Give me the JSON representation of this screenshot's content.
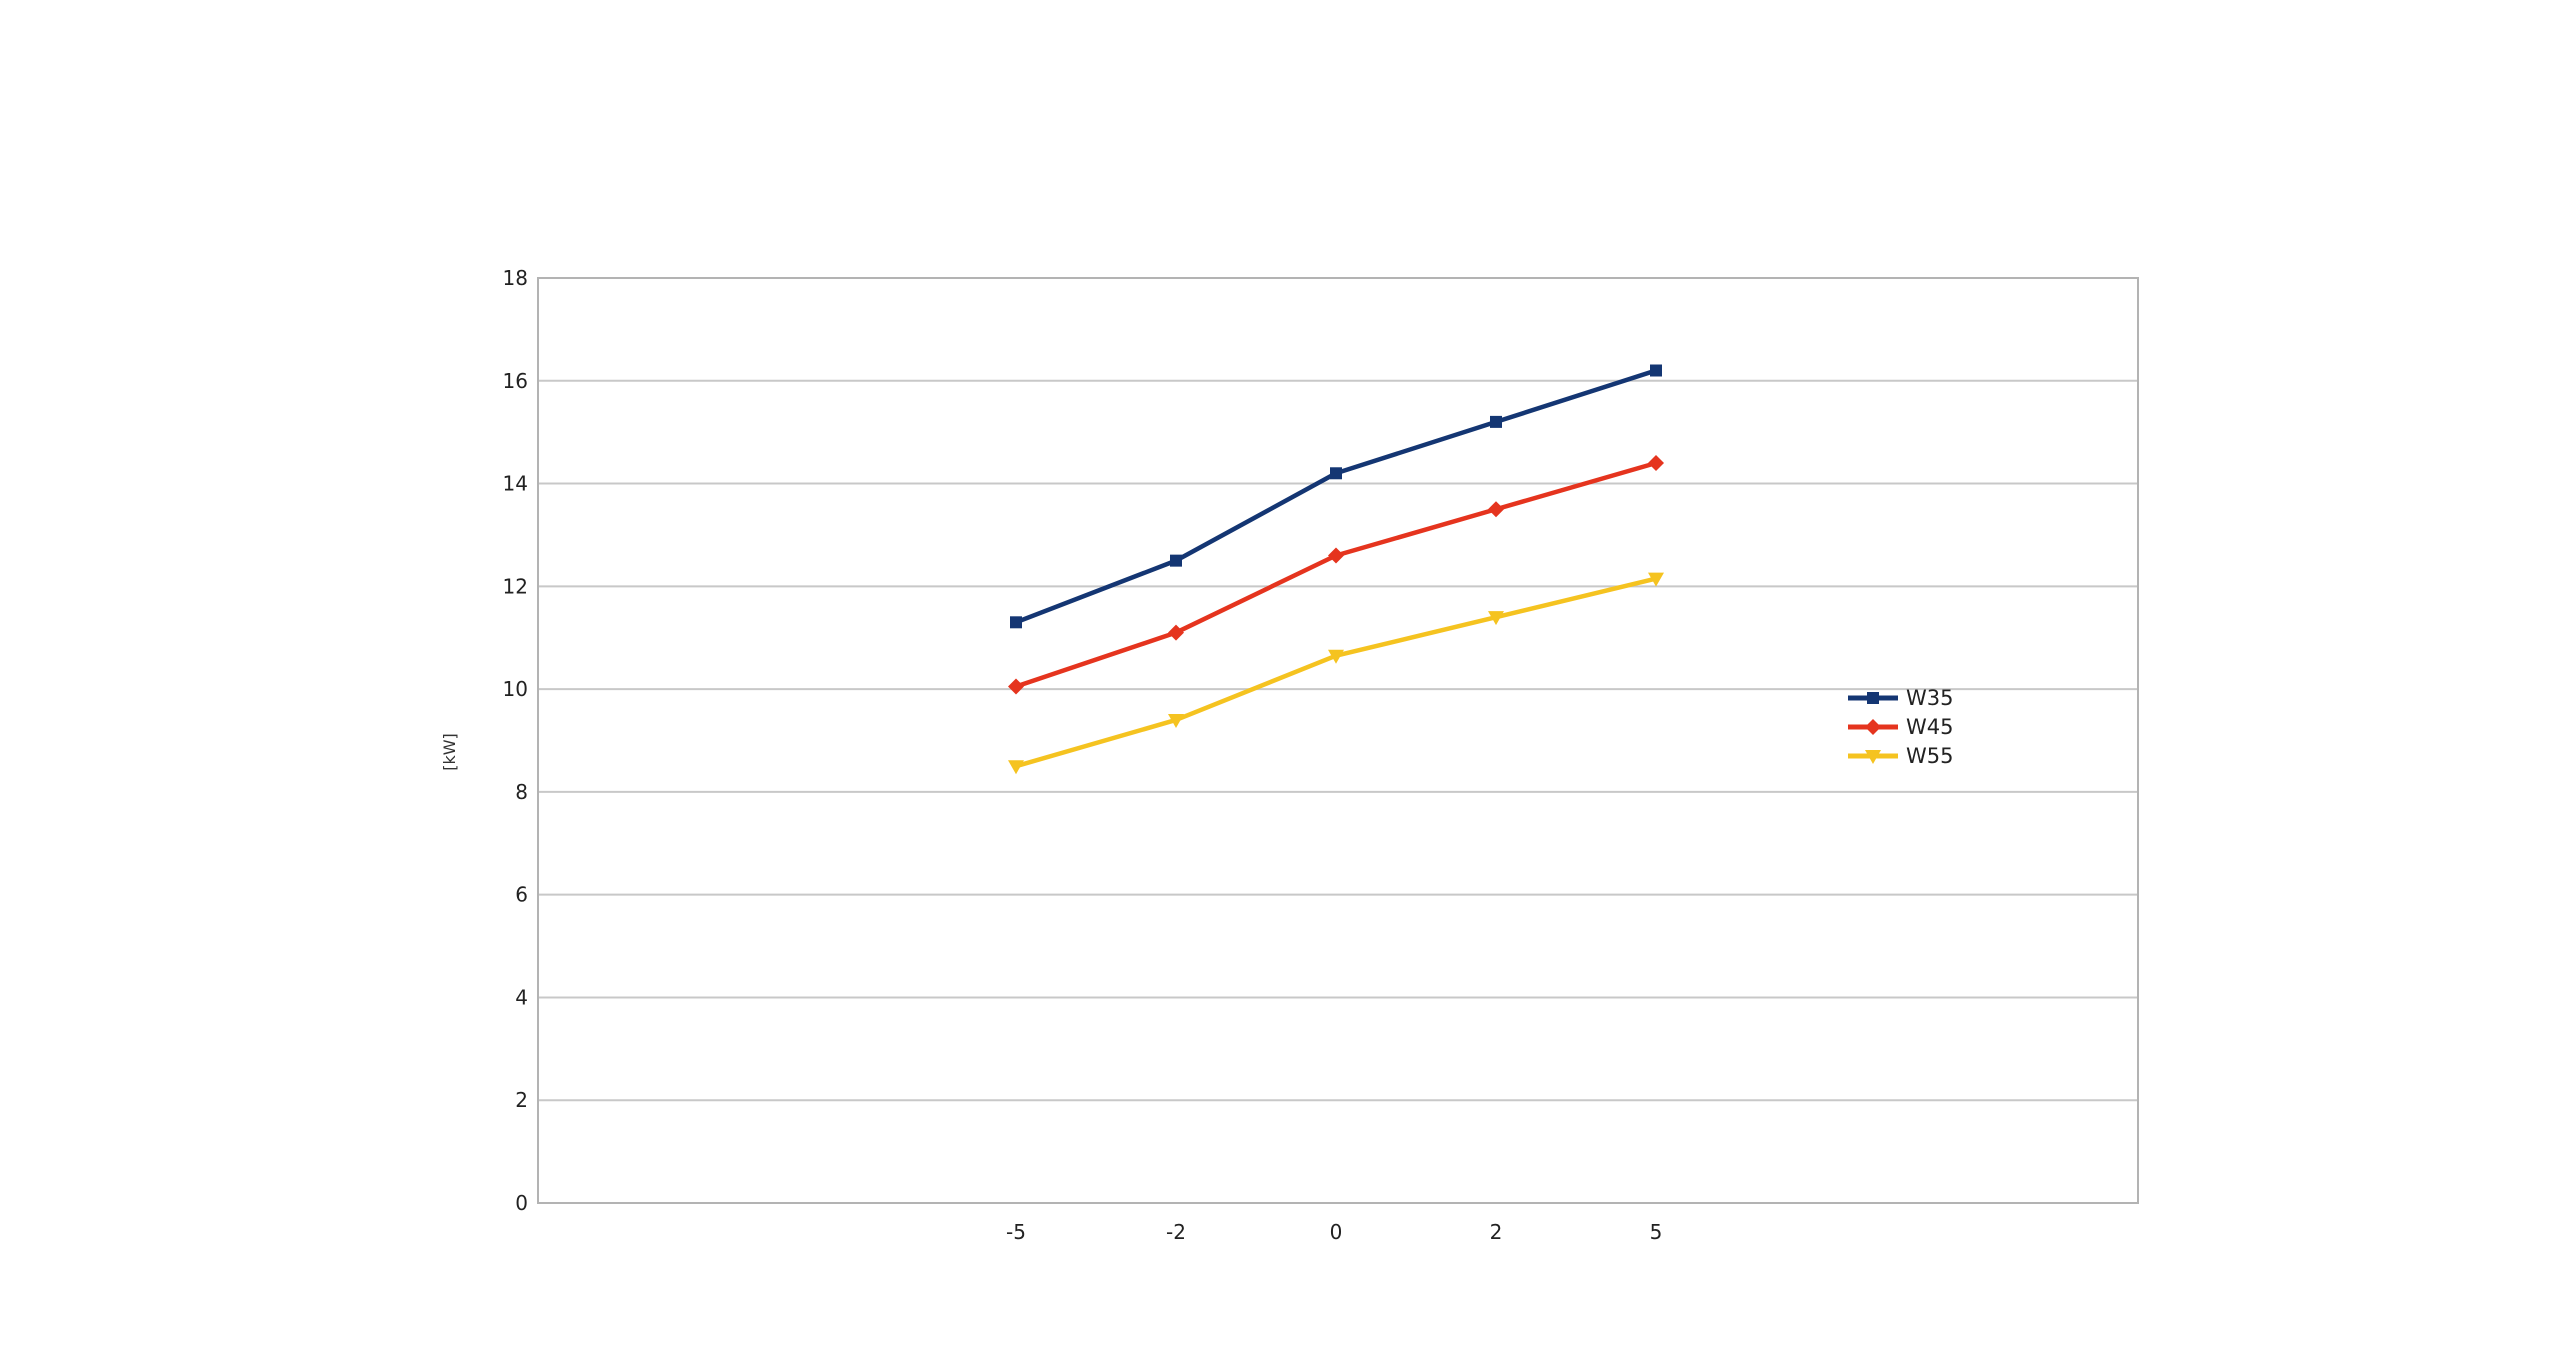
{
  "chart_data": {
    "type": "line",
    "title": "",
    "xlabel": "",
    "ylabel": "[kW]",
    "categories": [
      "-5",
      "-2",
      "0",
      "2",
      "5"
    ],
    "ylim": [
      0,
      18
    ],
    "y_ticks": [
      "0",
      "2",
      "4",
      "6",
      "8",
      "10",
      "12",
      "14",
      "16",
      "18"
    ],
    "grid": true,
    "legend_position": "right",
    "series": [
      {
        "name": "W35",
        "color": "#143673",
        "marker": "square",
        "values": [
          11.3,
          12.5,
          14.2,
          15.2,
          16.2
        ]
      },
      {
        "name": "W45",
        "color": "#e5341e",
        "marker": "diamond",
        "values": [
          10.05,
          11.1,
          12.6,
          13.5,
          14.4
        ]
      },
      {
        "name": "W55",
        "color": "#f5c320",
        "marker": "triangle-down",
        "values": [
          8.5,
          9.4,
          10.65,
          11.4,
          12.15
        ]
      }
    ]
  }
}
